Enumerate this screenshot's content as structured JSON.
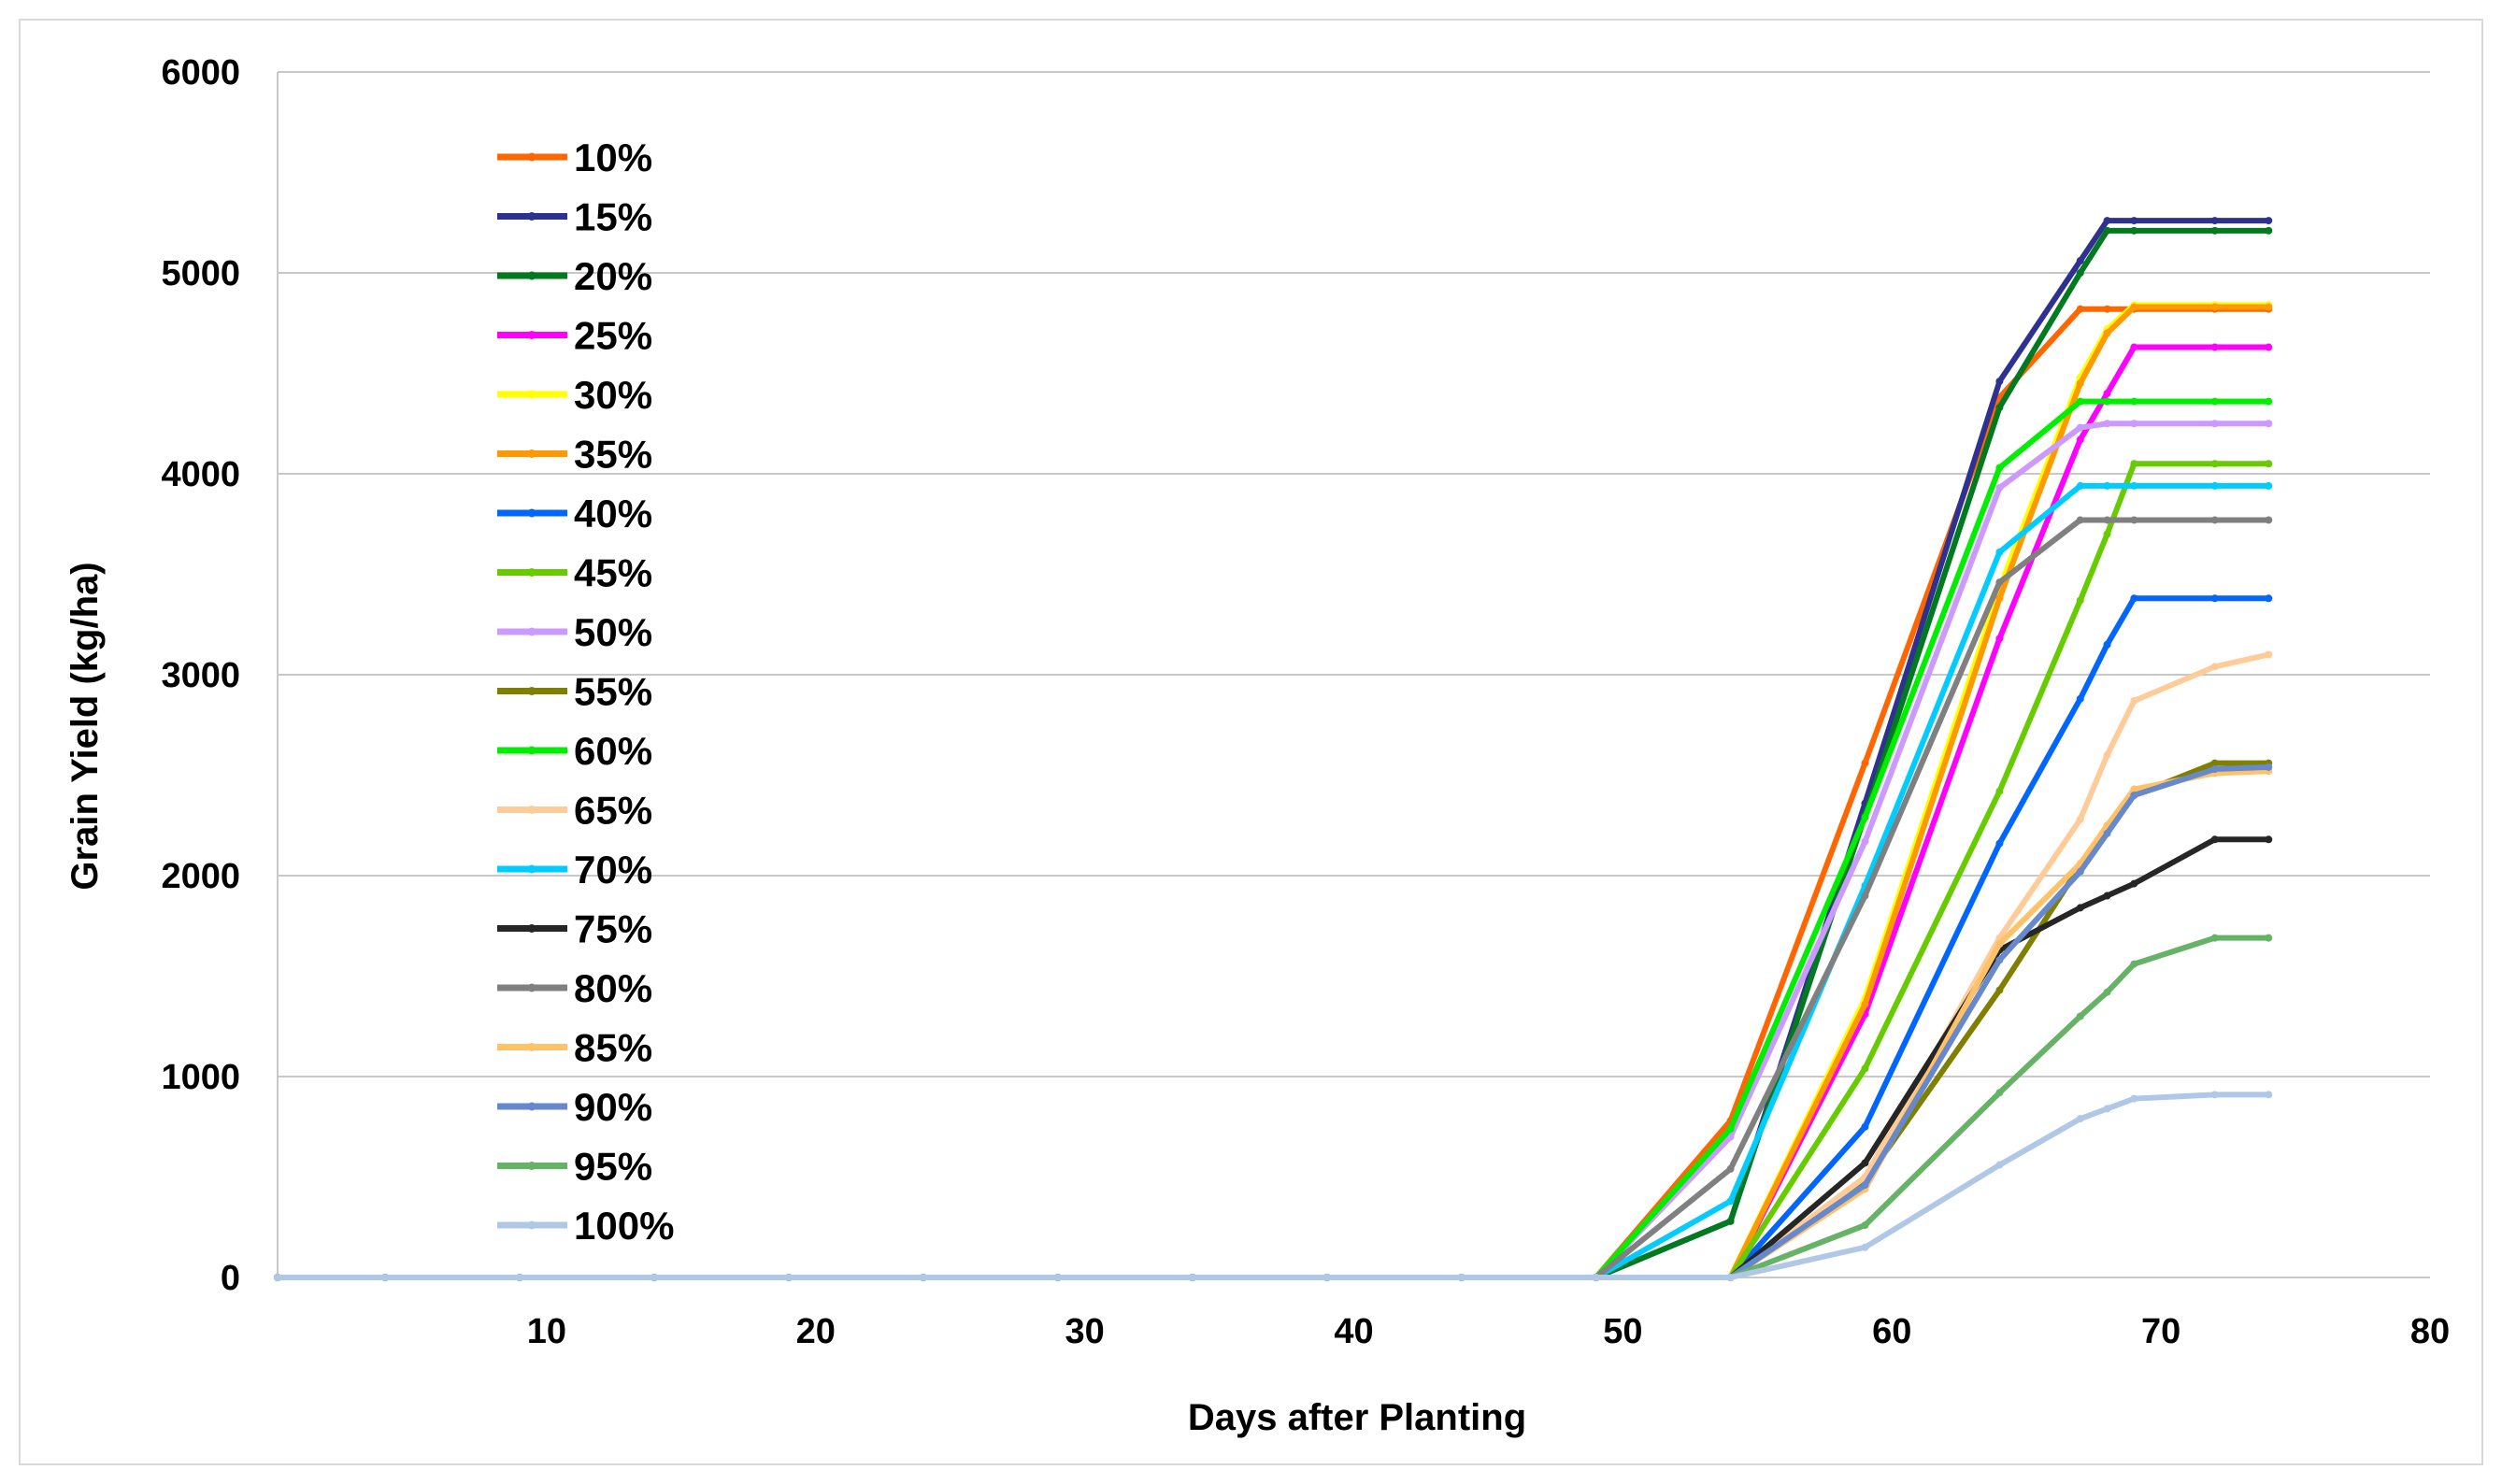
{
  "chart_data": {
    "type": "line",
    "title": "",
    "xlabel": "Days after Planting",
    "ylabel": "Grain Yield (kg/ha)",
    "xlim": [
      0,
      80
    ],
    "ylim": [
      0,
      6000
    ],
    "xticks": [
      10,
      20,
      30,
      40,
      50,
      60,
      70,
      80
    ],
    "yticks": [
      0,
      1000,
      2000,
      3000,
      4000,
      5000,
      6000
    ],
    "grid": "horizontal",
    "legend_position": "top-left",
    "x": [
      0,
      4,
      9,
      14,
      19,
      24,
      29,
      34,
      39,
      44,
      49,
      54,
      59,
      64,
      67,
      68,
      69,
      72,
      74
    ],
    "series": [
      {
        "name": "10%",
        "color": "#ff6600",
        "values": [
          0,
          0,
          0,
          0,
          0,
          0,
          0,
          0,
          0,
          0,
          0,
          780,
          2560,
          4380,
          4820,
          4820,
          4820,
          4820,
          4820
        ]
      },
      {
        "name": "15%",
        "color": "#2e3192",
        "values": [
          0,
          0,
          0,
          0,
          0,
          0,
          0,
          0,
          0,
          0,
          0,
          280,
          2360,
          4460,
          5060,
          5260,
          5260,
          5260,
          5260
        ]
      },
      {
        "name": "20%",
        "color": "#007a1f",
        "values": [
          0,
          0,
          0,
          0,
          0,
          0,
          0,
          0,
          0,
          0,
          0,
          280,
          2300,
          4330,
          5000,
          5210,
          5210,
          5210,
          5210
        ]
      },
      {
        "name": "25%",
        "color": "#ff00ff",
        "values": [
          0,
          0,
          0,
          0,
          0,
          0,
          0,
          0,
          0,
          0,
          0,
          0,
          1310,
          3180,
          4170,
          4400,
          4630,
          4630,
          4630
        ]
      },
      {
        "name": "30%",
        "color": "#ffff00",
        "values": [
          0,
          0,
          0,
          0,
          0,
          0,
          0,
          0,
          0,
          0,
          0,
          0,
          1390,
          3430,
          4480,
          4720,
          4840,
          4840,
          4840
        ]
      },
      {
        "name": "35%",
        "color": "#ff9900",
        "values": [
          0,
          0,
          0,
          0,
          0,
          0,
          0,
          0,
          0,
          0,
          0,
          0,
          1360,
          3380,
          4450,
          4700,
          4830,
          4830,
          4830
        ]
      },
      {
        "name": "40%",
        "color": "#0066ff",
        "values": [
          0,
          0,
          0,
          0,
          0,
          0,
          0,
          0,
          0,
          0,
          0,
          0,
          750,
          2160,
          2880,
          3150,
          3380,
          3380,
          3380
        ]
      },
      {
        "name": "45%",
        "color": "#66cc00",
        "values": [
          0,
          0,
          0,
          0,
          0,
          0,
          0,
          0,
          0,
          0,
          0,
          0,
          1040,
          2420,
          3370,
          3700,
          4050,
          4050,
          4050
        ]
      },
      {
        "name": "50%",
        "color": "#cc99ff",
        "values": [
          0,
          0,
          0,
          0,
          0,
          0,
          0,
          0,
          0,
          0,
          0,
          700,
          2170,
          3930,
          4230,
          4250,
          4250,
          4250,
          4250
        ]
      },
      {
        "name": "55%",
        "color": "#808000",
        "values": [
          0,
          0,
          0,
          0,
          0,
          0,
          0,
          0,
          0,
          0,
          0,
          0,
          480,
          1430,
          2050,
          2230,
          2400,
          2560,
          2560
        ]
      },
      {
        "name": "60%",
        "color": "#00ee00",
        "values": [
          0,
          0,
          0,
          0,
          0,
          0,
          0,
          0,
          0,
          0,
          0,
          740,
          2290,
          4030,
          4360,
          4360,
          4360,
          4360,
          4360
        ]
      },
      {
        "name": "65%",
        "color": "#ffcc99",
        "values": [
          0,
          0,
          0,
          0,
          0,
          0,
          0,
          0,
          0,
          0,
          0,
          0,
          500,
          1690,
          2280,
          2600,
          2870,
          3040,
          3100
        ]
      },
      {
        "name": "70%",
        "color": "#00ccff",
        "values": [
          0,
          0,
          0,
          0,
          0,
          0,
          0,
          0,
          0,
          0,
          0,
          380,
          1950,
          3610,
          3940,
          3940,
          3940,
          3940,
          3940
        ]
      },
      {
        "name": "75%",
        "color": "#262626",
        "values": [
          0,
          0,
          0,
          0,
          0,
          0,
          0,
          0,
          0,
          0,
          0,
          0,
          570,
          1630,
          1840,
          1900,
          1960,
          2180,
          2180
        ]
      },
      {
        "name": "80%",
        "color": "#808080",
        "values": [
          0,
          0,
          0,
          0,
          0,
          0,
          0,
          0,
          0,
          0,
          0,
          540,
          1900,
          3460,
          3770,
          3770,
          3770,
          3770,
          3770
        ]
      },
      {
        "name": "85%",
        "color": "#ffc266",
        "values": [
          0,
          0,
          0,
          0,
          0,
          0,
          0,
          0,
          0,
          0,
          0,
          0,
          440,
          1660,
          2060,
          2250,
          2430,
          2510,
          2520
        ]
      },
      {
        "name": "90%",
        "color": "#6688cc",
        "values": [
          0,
          0,
          0,
          0,
          0,
          0,
          0,
          0,
          0,
          0,
          0,
          0,
          460,
          1580,
          2020,
          2210,
          2400,
          2530,
          2540
        ]
      },
      {
        "name": "95%",
        "color": "#66b266",
        "values": [
          0,
          0,
          0,
          0,
          0,
          0,
          0,
          0,
          0,
          0,
          0,
          0,
          260,
          920,
          1300,
          1420,
          1560,
          1690,
          1690
        ]
      },
      {
        "name": "100%",
        "color": "#b0c8e6",
        "values": [
          0,
          0,
          0,
          0,
          0,
          0,
          0,
          0,
          0,
          0,
          0,
          0,
          150,
          560,
          790,
          840,
          890,
          910,
          910
        ]
      }
    ]
  }
}
